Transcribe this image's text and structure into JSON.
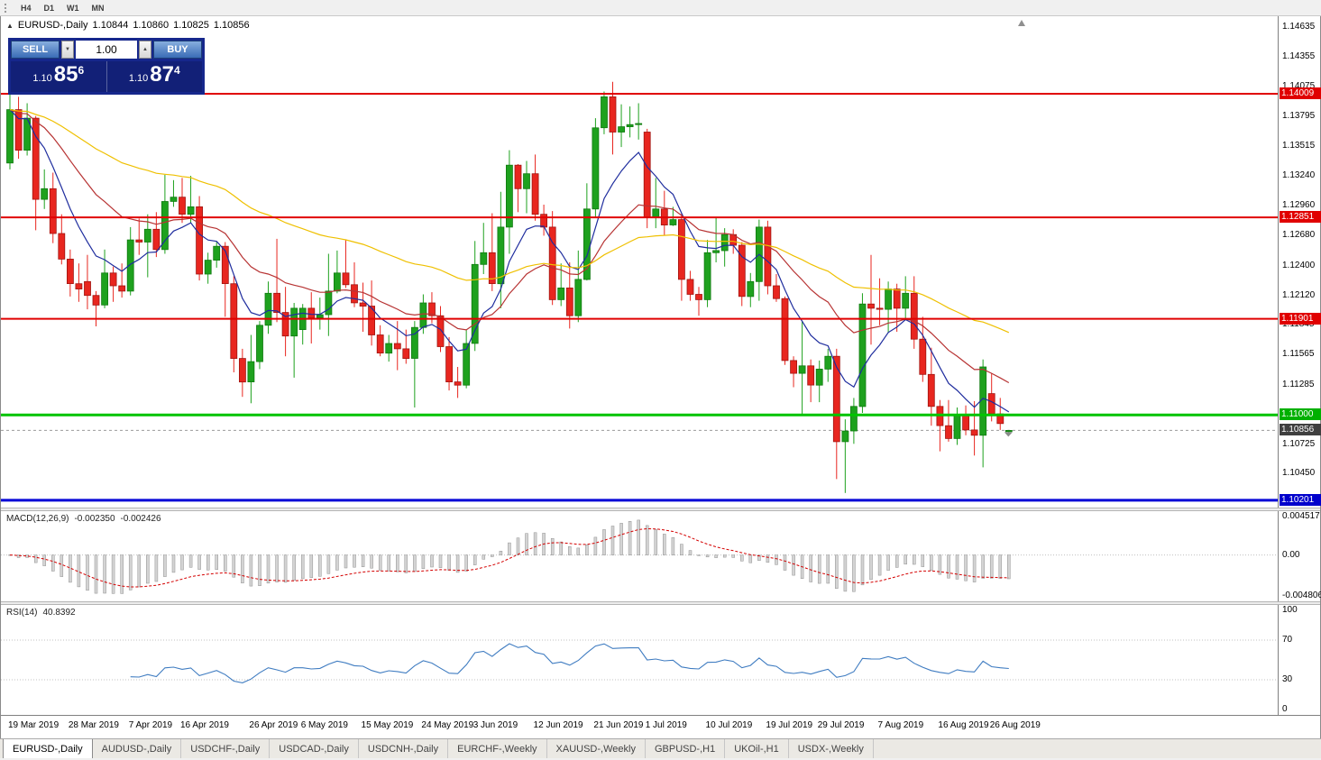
{
  "toolbar": {
    "timeframes": [
      "H4",
      "D1",
      "W1",
      "MN"
    ]
  },
  "icons": {
    "one_click_toggle": "▲",
    "volume_up": "▲",
    "volume_down": "▼"
  },
  "chart": {
    "title": {
      "symbol": "EURUSD-,Daily",
      "open": "1.10844",
      "high": "1.10860",
      "low": "1.10825",
      "close": "1.10856"
    },
    "trade": {
      "sell_label": "SELL",
      "buy_label": "BUY",
      "volume": "1.00",
      "sell_price": {
        "prefix": "1.10",
        "big": "85",
        "sup": "6"
      },
      "buy_price": {
        "prefix": "1.10",
        "big": "87",
        "sup": "4"
      }
    },
    "price_axis_labels": [
      "1.14635",
      "1.14355",
      "1.14075",
      "1.13795",
      "1.13515",
      "1.13240",
      "1.12960",
      "1.12680",
      "1.12400",
      "1.12120",
      "1.11845",
      "1.11565",
      "1.11285",
      "1.10725",
      "1.10450"
    ],
    "levels": [
      {
        "price": "1.14009",
        "color": "#e00000",
        "width": 2,
        "style": "solid",
        "tag_bg": "#e00000",
        "name": "resistance-line-1"
      },
      {
        "price": "1.12851",
        "color": "#e00000",
        "width": 2,
        "style": "solid",
        "tag_bg": "#e00000",
        "name": "resistance-line-2"
      },
      {
        "price": "1.11901",
        "color": "#e00000",
        "width": 2,
        "style": "solid",
        "tag_bg": "#e00000",
        "name": "resistance-line-3"
      },
      {
        "price": "1.11000",
        "color": "#00c400",
        "width": 3,
        "style": "solid",
        "tag_bg": "#00b000",
        "name": "support-line-green"
      },
      {
        "price": "1.10201",
        "color": "#0202d6",
        "width": 3,
        "style": "solid",
        "tag_bg": "#0000cc",
        "name": "support-line-blue"
      },
      {
        "price": "1.10856",
        "color": "#9b9b9b",
        "width": 1,
        "style": "dash",
        "tag_bg": "#3f3f3f",
        "name": "current-price-line"
      }
    ],
    "colors": {
      "bull": "#1ea11e",
      "bull_border": "#0f7a0f",
      "bear": "#e8261f",
      "bear_border": "#a01410"
    },
    "ma": [
      {
        "period": 8,
        "color": "#1f2d9e"
      },
      {
        "period": 21,
        "color": "#b73333"
      },
      {
        "period": 55,
        "color": "#efc000"
      }
    ]
  },
  "macd": {
    "label": "MACD(12,26,9)",
    "value_main": "-0.002350",
    "value_signal": "-0.002426",
    "fast": 12,
    "slow": 26,
    "signal": 9,
    "axis": [
      "0.004517",
      "0.00",
      "-0.004806"
    ],
    "range": {
      "max": 0.004517,
      "min": -0.004806
    },
    "colors": {
      "histogram": "#d4d4d4",
      "histogram_border": "#909090",
      "signal": "#d40000"
    }
  },
  "rsi": {
    "label": "RSI(14)",
    "value": "40.8392",
    "period": 14,
    "axis": [
      "100",
      "70",
      "30",
      "0"
    ],
    "levels": [
      70,
      30
    ],
    "color": "#3f7cc1"
  },
  "dates": [
    {
      "label": "19 Mar 2019",
      "index": 0
    },
    {
      "label": "28 Mar 2019",
      "index": 7
    },
    {
      "label": "7 Apr 2019",
      "index": 14
    },
    {
      "label": "16 Apr 2019",
      "index": 20
    },
    {
      "label": "26 Apr 2019",
      "index": 28
    },
    {
      "label": "6 May 2019",
      "index": 34
    },
    {
      "label": "15 May 2019",
      "index": 41
    },
    {
      "label": "24 May 2019",
      "index": 48
    },
    {
      "label": "3 Jun 2019",
      "index": 54
    },
    {
      "label": "12 Jun 2019",
      "index": 61
    },
    {
      "label": "21 Jun 2019",
      "index": 68
    },
    {
      "label": "1 Jul 2019",
      "index": 74
    },
    {
      "label": "10 Jul 2019",
      "index": 81
    },
    {
      "label": "19 Jul 2019",
      "index": 88
    },
    {
      "label": "29 Jul 2019",
      "index": 94
    },
    {
      "label": "7 Aug 2019",
      "index": 101
    },
    {
      "label": "16 Aug 2019",
      "index": 108
    },
    {
      "label": "26 Aug 2019",
      "index": 114
    }
  ],
  "tabs": [
    {
      "label": "EURUSD-,Daily",
      "active": true
    },
    {
      "label": "AUDUSD-,Daily",
      "active": false
    },
    {
      "label": "USDCHF-,Daily",
      "active": false
    },
    {
      "label": "USDCAD-,Daily",
      "active": false
    },
    {
      "label": "USDCNH-,Daily",
      "active": false
    },
    {
      "label": "EURCHF-,Weekly",
      "active": false
    },
    {
      "label": "XAUUSD-,Weekly",
      "active": false
    },
    {
      "label": "GBPUSD-,H1",
      "active": false
    },
    {
      "label": "UKOil-,H1",
      "active": false
    },
    {
      "label": "USDX-,Weekly",
      "active": false
    }
  ],
  "chart_data": {
    "type": "candlestick",
    "symbol": "EURUSD",
    "timeframe": "Daily",
    "scale": {
      "top": 1.14735,
      "bottom": 1.10133
    },
    "ohlc": [
      [
        1.1336,
        1.14,
        1.133,
        1.1386
      ],
      [
        1.1386,
        1.1398,
        1.134,
        1.1348
      ],
      [
        1.1348,
        1.1392,
        1.1343,
        1.1378
      ],
      [
        1.1378,
        1.138,
        1.1273,
        1.1302
      ],
      [
        1.1302,
        1.133,
        1.1293,
        1.1312
      ],
      [
        1.1312,
        1.1327,
        1.1261,
        1.127
      ],
      [
        1.127,
        1.1288,
        1.1241,
        1.1246
      ],
      [
        1.1246,
        1.1255,
        1.1211,
        1.1223
      ],
      [
        1.1223,
        1.1242,
        1.1206,
        1.1218
      ],
      [
        1.1225,
        1.125,
        1.1199,
        1.1212
      ],
      [
        1.1212,
        1.1216,
        1.1183,
        1.1203
      ],
      [
        1.1203,
        1.1255,
        1.12,
        1.1233
      ],
      [
        1.1233,
        1.1239,
        1.1206,
        1.1221
      ],
      [
        1.1221,
        1.1242,
        1.121,
        1.1216
      ],
      [
        1.1216,
        1.1276,
        1.1212,
        1.1264
      ],
      [
        1.1264,
        1.1284,
        1.125,
        1.1262
      ],
      [
        1.1262,
        1.1288,
        1.1229,
        1.1274
      ],
      [
        1.1274,
        1.129,
        1.1248,
        1.1255
      ],
      [
        1.1255,
        1.1325,
        1.1251,
        1.13
      ],
      [
        1.13,
        1.132,
        1.1295,
        1.1304
      ],
      [
        1.1304,
        1.1322,
        1.128,
        1.1288
      ],
      [
        1.1288,
        1.1324,
        1.128,
        1.1295
      ],
      [
        1.1295,
        1.1305,
        1.1226,
        1.1232
      ],
      [
        1.1232,
        1.1252,
        1.1223,
        1.1245
      ],
      [
        1.1245,
        1.1262,
        1.1238,
        1.1258
      ],
      [
        1.1258,
        1.1262,
        1.1192,
        1.1223
      ],
      [
        1.1223,
        1.123,
        1.114,
        1.1153
      ],
      [
        1.1153,
        1.1162,
        1.1117,
        1.1131
      ],
      [
        1.1131,
        1.1175,
        1.1111,
        1.115
      ],
      [
        1.115,
        1.1188,
        1.1143,
        1.1184
      ],
      [
        1.1184,
        1.1225,
        1.1176,
        1.1214
      ],
      [
        1.1214,
        1.1265,
        1.1187,
        1.1196
      ],
      [
        1.1196,
        1.122,
        1.1155,
        1.1174
      ],
      [
        1.1174,
        1.1205,
        1.1135,
        1.12
      ],
      [
        1.118,
        1.1204,
        1.1166,
        1.12
      ],
      [
        1.12,
        1.1215,
        1.1167,
        1.1191
      ],
      [
        1.1191,
        1.121,
        1.118,
        1.1194
      ],
      [
        1.1194,
        1.1251,
        1.1174,
        1.1216
      ],
      [
        1.1216,
        1.1254,
        1.1214,
        1.1233
      ],
      [
        1.1233,
        1.1264,
        1.1219,
        1.1222
      ],
      [
        1.1222,
        1.1243,
        1.1201,
        1.1205
      ],
      [
        1.1205,
        1.1224,
        1.1178,
        1.1202
      ],
      [
        1.1202,
        1.1226,
        1.1165,
        1.1175
      ],
      [
        1.1175,
        1.1184,
        1.1155,
        1.1158
      ],
      [
        1.1158,
        1.1175,
        1.115,
        1.1167
      ],
      [
        1.1167,
        1.1188,
        1.1142,
        1.1162
      ],
      [
        1.1162,
        1.118,
        1.1148,
        1.1153
      ],
      [
        1.1153,
        1.1188,
        1.1107,
        1.1182
      ],
      [
        1.1182,
        1.1213,
        1.1176,
        1.1205
      ],
      [
        1.1205,
        1.1215,
        1.1186,
        1.1193
      ],
      [
        1.1193,
        1.1202,
        1.1159,
        1.1164
      ],
      [
        1.1164,
        1.1173,
        1.1123,
        1.1131
      ],
      [
        1.1131,
        1.1145,
        1.1116,
        1.1128
      ],
      [
        1.1128,
        1.118,
        1.1125,
        1.1167
      ],
      [
        1.1167,
        1.1263,
        1.116,
        1.1241
      ],
      [
        1.1241,
        1.128,
        1.1232,
        1.1252
      ],
      [
        1.1252,
        1.1289,
        1.1216,
        1.1223
      ],
      [
        1.1223,
        1.1309,
        1.12,
        1.1276
      ],
      [
        1.1276,
        1.1348,
        1.1251,
        1.1334
      ],
      [
        1.1334,
        1.1335,
        1.129,
        1.1312
      ],
      [
        1.1312,
        1.1338,
        1.1289,
        1.1326
      ],
      [
        1.1326,
        1.1344,
        1.1282,
        1.1288
      ],
      [
        1.1288,
        1.1297,
        1.1268,
        1.1276
      ],
      [
        1.1276,
        1.1291,
        1.1203,
        1.1208
      ],
      [
        1.1208,
        1.1242,
        1.1202,
        1.1219
      ],
      [
        1.1219,
        1.1243,
        1.1181,
        1.1193
      ],
      [
        1.1193,
        1.1254,
        1.1187,
        1.1227
      ],
      [
        1.1227,
        1.1317,
        1.1226,
        1.1293
      ],
      [
        1.1293,
        1.1378,
        1.1285,
        1.1369
      ],
      [
        1.1369,
        1.1403,
        1.1363,
        1.1398
      ],
      [
        1.1398,
        1.1412,
        1.1344,
        1.1365
      ],
      [
        1.1365,
        1.1391,
        1.1351,
        1.137
      ],
      [
        1.137,
        1.1389,
        1.136,
        1.1372
      ],
      [
        1.1372,
        1.1392,
        1.1358,
        1.1373
      ],
      [
        1.1365,
        1.1368,
        1.1275,
        1.1285
      ],
      [
        1.1285,
        1.1322,
        1.1275,
        1.1293
      ],
      [
        1.1293,
        1.131,
        1.1268,
        1.1278
      ],
      [
        1.1278,
        1.1295,
        1.1277,
        1.1283
      ],
      [
        1.1283,
        1.1289,
        1.1207,
        1.1227
      ],
      [
        1.1227,
        1.1235,
        1.1207,
        1.1213
      ],
      [
        1.1213,
        1.122,
        1.1193,
        1.1208
      ],
      [
        1.1208,
        1.1264,
        1.1201,
        1.1252
      ],
      [
        1.1252,
        1.1285,
        1.1243,
        1.1254
      ],
      [
        1.1254,
        1.1275,
        1.1239,
        1.1269
      ],
      [
        1.1269,
        1.1274,
        1.1251,
        1.1259
      ],
      [
        1.1259,
        1.1262,
        1.1202,
        1.1211
      ],
      [
        1.1211,
        1.1233,
        1.1201,
        1.1225
      ],
      [
        1.1225,
        1.1283,
        1.1207,
        1.1276
      ],
      [
        1.1276,
        1.1282,
        1.1213,
        1.1221
      ],
      [
        1.1221,
        1.1232,
        1.1206,
        1.1209
      ],
      [
        1.1209,
        1.1211,
        1.1147,
        1.1151
      ],
      [
        1.1151,
        1.1155,
        1.1126,
        1.1139
      ],
      [
        1.1139,
        1.1188,
        1.1101,
        1.1146
      ],
      [
        1.1146,
        1.1152,
        1.1112,
        1.1128
      ],
      [
        1.1128,
        1.1151,
        1.1112,
        1.1143
      ],
      [
        1.1143,
        1.1162,
        1.1131,
        1.1155
      ],
      [
        1.1155,
        1.1162,
        1.104,
        1.1075
      ],
      [
        1.1075,
        1.1096,
        1.1027,
        1.1085
      ],
      [
        1.1085,
        1.1116,
        1.1073,
        1.1108
      ],
      [
        1.1108,
        1.1214,
        1.1102,
        1.1204
      ],
      [
        1.1204,
        1.125,
        1.1166,
        1.12
      ],
      [
        1.12,
        1.1228,
        1.1184,
        1.1199
      ],
      [
        1.1199,
        1.1225,
        1.1177,
        1.1218
      ],
      [
        1.1218,
        1.1223,
        1.1178,
        1.12
      ],
      [
        1.12,
        1.123,
        1.1189,
        1.1214
      ],
      [
        1.1214,
        1.123,
        1.1162,
        1.1171
      ],
      [
        1.1171,
        1.1192,
        1.1131,
        1.1138
      ],
      [
        1.1138,
        1.1163,
        1.109,
        1.1108
      ],
      [
        1.1108,
        1.1114,
        1.1066,
        1.109
      ],
      [
        1.109,
        1.1114,
        1.1075,
        1.1078
      ],
      [
        1.1078,
        1.1107,
        1.1072,
        1.11
      ],
      [
        1.11,
        1.1109,
        1.1081,
        1.1086
      ],
      [
        1.1086,
        1.1113,
        1.1062,
        1.1081
      ],
      [
        1.1081,
        1.1152,
        1.1051,
        1.1145
      ],
      [
        1.112,
        1.1139,
        1.1094,
        1.1101
      ],
      [
        1.1101,
        1.1116,
        1.1086,
        1.1092
      ],
      [
        1.10844,
        1.1086,
        1.10825,
        1.10856
      ]
    ]
  }
}
